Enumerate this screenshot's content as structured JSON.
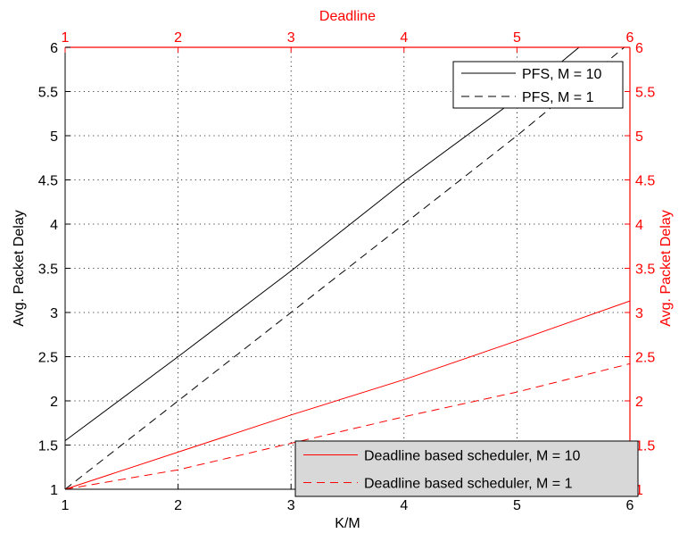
{
  "chart_data": {
    "type": "line",
    "bottom_axis": {
      "label": "K/M",
      "ticks": [
        "1",
        "2",
        "3",
        "4",
        "5",
        "6"
      ],
      "range": [
        1,
        6
      ]
    },
    "top_axis": {
      "label": "Deadline",
      "ticks": [
        "1",
        "2",
        "3",
        "4",
        "5",
        "6"
      ],
      "range": [
        1,
        6
      ],
      "color": "#ff0000"
    },
    "left_axis": {
      "label": "Avg. Packet Delay",
      "ticks": [
        "1",
        "1.5",
        "2",
        "2.5",
        "3",
        "3.5",
        "4",
        "4.5",
        "5",
        "5.5",
        "6"
      ],
      "range": [
        1,
        6
      ]
    },
    "right_axis": {
      "label": "Avg. Packet Delay",
      "ticks": [
        "1",
        "1.5",
        "2",
        "2.5",
        "3",
        "3.5",
        "4",
        "4.5",
        "5",
        "5.5",
        "6"
      ],
      "range": [
        1,
        6
      ],
      "color": "#ff0000"
    },
    "grid": true,
    "series": [
      {
        "name": "PFS, M = 10",
        "axis": "bottom-left",
        "color": "#000000",
        "style": "solid",
        "x": [
          1,
          2,
          3,
          4,
          5,
          5.55
        ],
        "y": [
          1.55,
          2.5,
          3.47,
          4.48,
          5.42,
          6.0
        ]
      },
      {
        "name": "PFS, M = 1",
        "axis": "bottom-left",
        "color": "#000000",
        "style": "dashed",
        "x": [
          1,
          2,
          3,
          4,
          5,
          5.95
        ],
        "y": [
          1.0,
          2.0,
          3.0,
          4.0,
          5.0,
          6.0
        ]
      },
      {
        "name": "Deadline based scheduler, M = 10",
        "axis": "top-right",
        "color": "#ff0000",
        "style": "solid",
        "x": [
          1,
          2,
          3,
          4,
          5,
          6
        ],
        "y": [
          1.0,
          1.42,
          1.84,
          2.24,
          2.68,
          3.13
        ]
      },
      {
        "name": "Deadline based scheduler, M = 1",
        "axis": "top-right",
        "color": "#ff0000",
        "style": "dashed",
        "x": [
          1,
          2,
          3,
          4,
          5,
          6
        ],
        "y": [
          1.0,
          1.22,
          1.52,
          1.82,
          2.1,
          2.42
        ]
      }
    ],
    "legends": [
      {
        "placement": "top-right",
        "entries": [
          "PFS, M = 10",
          "PFS, M = 1"
        ]
      },
      {
        "placement": "bottom-right",
        "entries": [
          "Deadline based scheduler, M = 10",
          "Deadline based scheduler, M = 1"
        ]
      }
    ]
  }
}
